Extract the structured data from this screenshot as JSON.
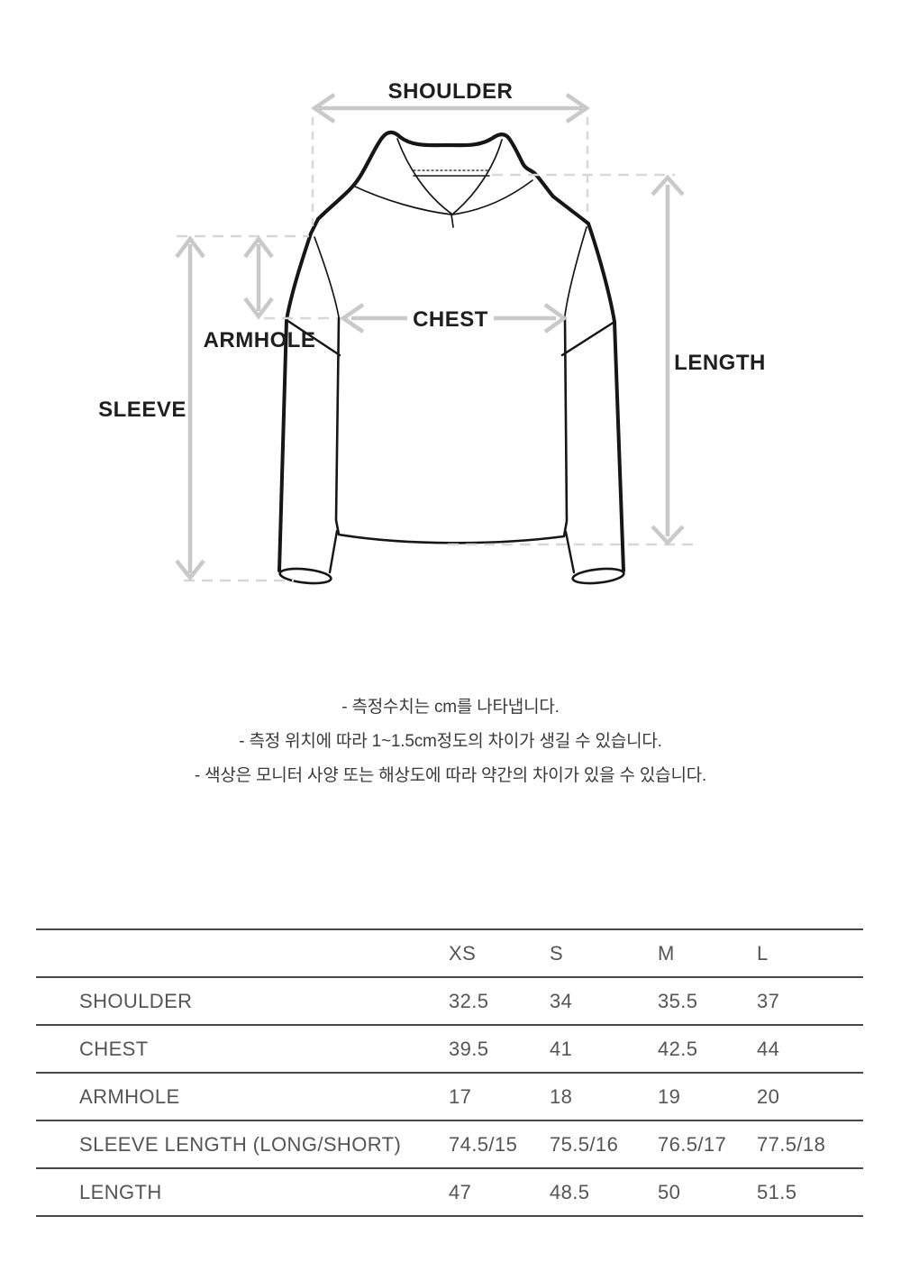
{
  "diagram": {
    "labels": {
      "shoulder": "SHOULDER",
      "chest": "CHEST",
      "armhole": "ARMHOLE",
      "sleeve": "SLEEVE",
      "length": "LENGTH"
    },
    "garment_line_color": "#161616",
    "arrow_color": "#c9c9c9",
    "dash_color": "#d7d7d7"
  },
  "notes": {
    "lines": [
      "- 측정수치는 cm를 나타냅니다.",
      "- 측정 위치에 따라 1~1.5cm정도의 차이가 생길 수 있습니다.",
      "- 색상은 모니터 사양 또는 해상도에 따라 약간의 차이가 있을 수 있습니다."
    ]
  },
  "size_table": {
    "columns": [
      "",
      "XS",
      "S",
      "M",
      "L"
    ],
    "rows": [
      {
        "label": "SHOULDER",
        "values": [
          "32.5",
          "34",
          "35.5",
          "37"
        ]
      },
      {
        "label": "CHEST",
        "values": [
          "39.5",
          "41",
          "42.5",
          "44"
        ]
      },
      {
        "label": "ARMHOLE",
        "values": [
          "17",
          "18",
          "19",
          "20"
        ]
      },
      {
        "label": "SLEEVE LENGTH (LONG/SHORT)",
        "values": [
          "74.5/15",
          "75.5/16",
          "76.5/17",
          "77.5/18"
        ]
      },
      {
        "label": "LENGTH",
        "values": [
          "47",
          "48.5",
          "50",
          "51.5"
        ]
      }
    ]
  }
}
